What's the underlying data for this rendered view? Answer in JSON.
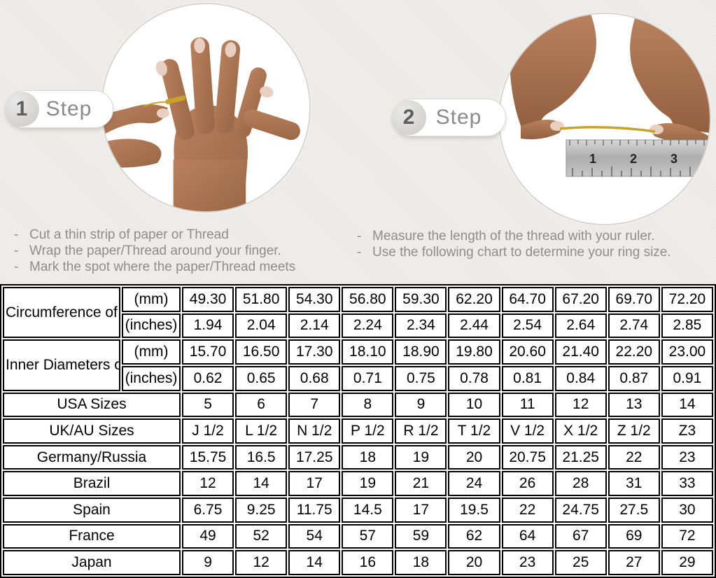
{
  "steps": [
    {
      "number": "1",
      "label": "Step",
      "photo": "hand-with-ring-and-thread",
      "instructions": [
        "Cut a thin strip of paper or Thread",
        "Wrap the paper/Thread around your finger.",
        "Mark the spot where the paper/Thread meets"
      ]
    },
    {
      "number": "2",
      "label": "Step",
      "photo": "hands-measuring-thread-with-ruler",
      "instructions": [
        "Measure the length of the thread with your ruler.",
        "Use the following chart to determine your ring size."
      ]
    }
  ],
  "ruler_numbers": [
    "1",
    "2",
    "3"
  ],
  "colors": {
    "page_background": "#ebe9e5",
    "table_shaded_cell": "#d9d9d9",
    "table_border": "#000000",
    "instruction_text": "#8f8d8a",
    "badge_text": "#8a8a8a",
    "skin": "#b07b5a",
    "skin_shadow": "#8e5f42",
    "gold": "#c9a227",
    "ruler_metal": "#b9b9b9"
  },
  "size_chart": {
    "row_groups": [
      {
        "label": "Circumference of Your Finger",
        "rows": [
          {
            "unit": "(mm)",
            "shaded": true,
            "values": [
              "49.30",
              "51.80",
              "54.30",
              "56.80",
              "59.30",
              "62.20",
              "64.70",
              "67.20",
              "69.70",
              "72.20"
            ]
          },
          {
            "unit": "(inches)",
            "shaded": false,
            "values": [
              "1.94",
              "2.04",
              "2.14",
              "2.24",
              "2.34",
              "2.44",
              "2.54",
              "2.64",
              "2.74",
              "2.85"
            ]
          }
        ]
      },
      {
        "label": "Inner Diameters of Rings",
        "rows": [
          {
            "unit": "(mm)",
            "shaded": false,
            "values": [
              "15.70",
              "16.50",
              "17.30",
              "18.10",
              "18.90",
              "19.80",
              "20.60",
              "21.40",
              "22.20",
              "23.00"
            ]
          },
          {
            "unit": "(inches)",
            "shaded": false,
            "values": [
              "0.62",
              "0.65",
              "0.68",
              "0.71",
              "0.75",
              "0.78",
              "0.81",
              "0.84",
              "0.87",
              "0.91"
            ]
          }
        ]
      },
      {
        "label": "USA Sizes",
        "shaded": true,
        "values": [
          "5",
          "6",
          "7",
          "8",
          "9",
          "10",
          "11",
          "12",
          "13",
          "14"
        ]
      },
      {
        "label": "UK/AU Sizes",
        "shaded": false,
        "values": [
          "J 1/2",
          "L 1/2",
          "N 1/2",
          "P 1/2",
          "R 1/2",
          "T 1/2",
          "V 1/2",
          "X 1/2",
          "Z 1/2",
          "Z3"
        ]
      },
      {
        "label": "Germany/Russia",
        "shaded": false,
        "values": [
          "15.75",
          "16.5",
          "17.25",
          "18",
          "19",
          "20",
          "20.75",
          "21.25",
          "22",
          "23"
        ]
      },
      {
        "label": "Brazil",
        "shaded": false,
        "values": [
          "12",
          "14",
          "17",
          "19",
          "21",
          "24",
          "26",
          "28",
          "31",
          "33"
        ]
      },
      {
        "label": "Spain",
        "shaded": false,
        "values": [
          "6.75",
          "9.25",
          "11.75",
          "14.5",
          "17",
          "19.5",
          "22",
          "24.75",
          "27.5",
          "30"
        ]
      },
      {
        "label": "France",
        "shaded": false,
        "values": [
          "49",
          "52",
          "54",
          "57",
          "59",
          "62",
          "64",
          "67",
          "69",
          "72"
        ]
      },
      {
        "label": "Japan",
        "shaded": false,
        "values": [
          "9",
          "12",
          "14",
          "16",
          "18",
          "20",
          "23",
          "25",
          "27",
          "29"
        ]
      }
    ]
  }
}
